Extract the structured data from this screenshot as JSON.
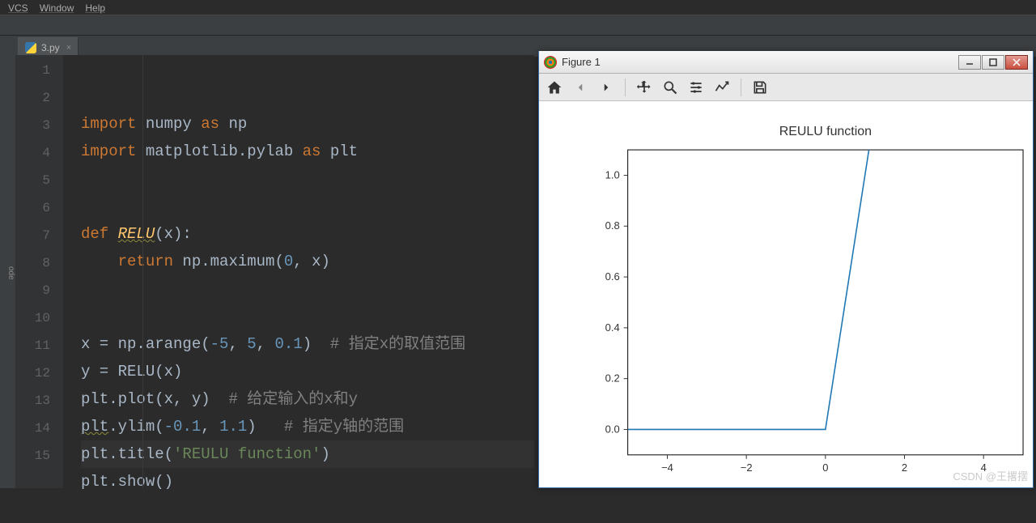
{
  "menu": {
    "items": [
      "VCS",
      "Window",
      "Help"
    ]
  },
  "tab": {
    "filename": "3.py"
  },
  "sidebar": {
    "label": "ode"
  },
  "code": {
    "lines": [
      {
        "n": 1,
        "seg": [
          [
            "kw",
            "import"
          ],
          [
            "ident",
            " numpy "
          ],
          [
            "kw",
            "as"
          ],
          [
            "ident",
            " np"
          ]
        ]
      },
      {
        "n": 2,
        "seg": [
          [
            "kw",
            "import"
          ],
          [
            "ident",
            " matplotlib.pylab "
          ],
          [
            "kw",
            "as"
          ],
          [
            "ident",
            " plt"
          ]
        ]
      },
      {
        "n": 3,
        "seg": []
      },
      {
        "n": 4,
        "seg": []
      },
      {
        "n": 5,
        "seg": [
          [
            "kw",
            "def "
          ],
          [
            "def-name",
            "RELU"
          ],
          [
            "ident",
            "(x):"
          ]
        ]
      },
      {
        "n": 6,
        "seg": [
          [
            "ident",
            "    "
          ],
          [
            "kw",
            "return"
          ],
          [
            "ident",
            " np.maximum("
          ],
          [
            "num",
            "0"
          ],
          [
            "ident",
            ", x)"
          ]
        ]
      },
      {
        "n": 7,
        "seg": []
      },
      {
        "n": 8,
        "seg": []
      },
      {
        "n": 9,
        "seg": [
          [
            "ident",
            "x = np.arange("
          ],
          [
            "num",
            "-5"
          ],
          [
            "ident",
            ", "
          ],
          [
            "num",
            "5"
          ],
          [
            "ident",
            ", "
          ],
          [
            "num",
            "0.1"
          ],
          [
            "ident",
            ")  "
          ],
          [
            "cmt",
            "# 指定x的取值范围"
          ]
        ]
      },
      {
        "n": 10,
        "seg": [
          [
            "ident",
            "y = RELU(x)"
          ]
        ]
      },
      {
        "n": 11,
        "seg": [
          [
            "ident",
            "plt.plot(x, y)  "
          ],
          [
            "cmt",
            "# 给定输入的x和y"
          ]
        ]
      },
      {
        "n": 12,
        "seg": [
          [
            "warn",
            "plt"
          ],
          [
            "ident",
            ".ylim("
          ],
          [
            "num",
            "-0.1"
          ],
          [
            "ident",
            ", "
          ],
          [
            "num",
            "1.1"
          ],
          [
            "ident",
            ")   "
          ],
          [
            "cmt",
            "# 指定y轴的范围"
          ]
        ]
      },
      {
        "n": 13,
        "seg": [
          [
            "ident",
            "plt.title("
          ],
          [
            "str",
            "'REULU function'"
          ],
          [
            "ident",
            ")"
          ]
        ],
        "current": true
      },
      {
        "n": 14,
        "seg": [
          [
            "ident",
            "plt.show()"
          ]
        ]
      },
      {
        "n": 15,
        "seg": []
      }
    ]
  },
  "figure": {
    "title": "Figure 1",
    "chart": {
      "type": "line",
      "plot_title": "REULU function",
      "title_fontsize": 16,
      "xlim": [
        -5,
        5
      ],
      "ylim": [
        -0.1,
        1.1
      ],
      "xticks": [
        -4,
        -2,
        0,
        2,
        4
      ],
      "yticks": [
        0.0,
        0.2,
        0.4,
        0.6,
        0.8,
        1.0
      ],
      "line_color": "#1f77b4",
      "line_width": 1.6,
      "background_color": "#ffffff",
      "frame_color": "#000000",
      "tick_fontsize": 13,
      "tick_color": "#333333",
      "x_values": [
        -5,
        -4,
        -3,
        -2,
        -1,
        0,
        0.2,
        0.4,
        0.6,
        0.8,
        1.0,
        1.2,
        5
      ],
      "y_values": [
        0,
        0,
        0,
        0,
        0,
        0,
        0.2,
        0.4,
        0.6,
        0.8,
        1.0,
        1.2,
        5
      ]
    }
  },
  "watermark": "CSDN @王撂摆"
}
